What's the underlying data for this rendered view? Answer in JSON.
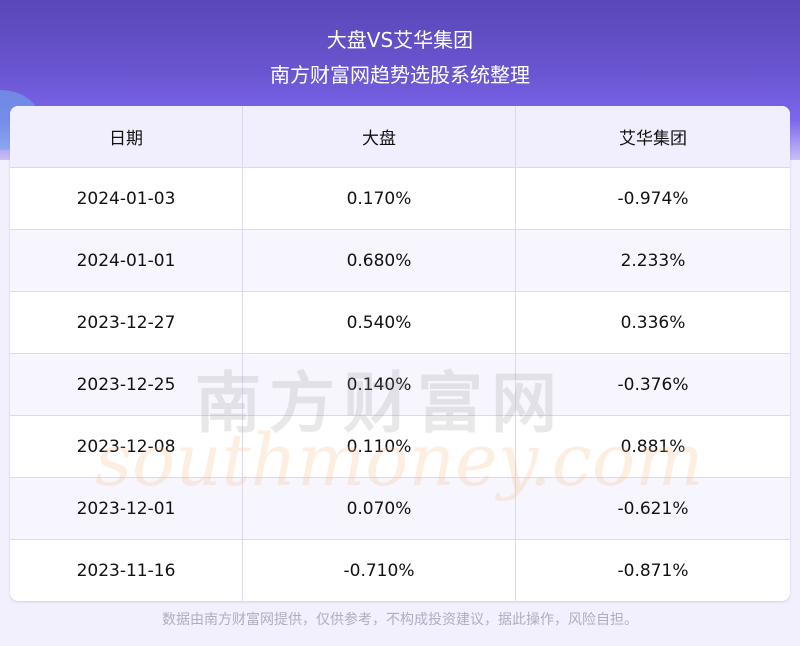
{
  "header": {
    "title": "大盘VS艾华集团",
    "subtitle": "南方财富网趋势选股系统整理"
  },
  "table": {
    "columns": [
      "日期",
      "大盘",
      "艾华集团"
    ],
    "rows": [
      [
        "2024-01-03",
        "0.170%",
        "-0.974%"
      ],
      [
        "2024-01-01",
        "0.680%",
        "2.233%"
      ],
      [
        "2023-12-27",
        "0.540%",
        "0.336%"
      ],
      [
        "2023-12-25",
        "0.140%",
        "-0.376%"
      ],
      [
        "2023-12-08",
        "0.110%",
        "0.881%"
      ],
      [
        "2023-12-01",
        "0.070%",
        "-0.621%"
      ],
      [
        "2023-11-16",
        "-0.710%",
        "-0.871%"
      ]
    ]
  },
  "watermark": {
    "cn": "南方财富网",
    "en": "southmoney.com"
  },
  "footer": "数据由南方财富网提供，仅供参考，不构成投资建议，据此操作，风险自担。",
  "colors": {
    "banner": "#6a55d0",
    "background": "#f2f0fd",
    "header_row": "#f1effd"
  }
}
